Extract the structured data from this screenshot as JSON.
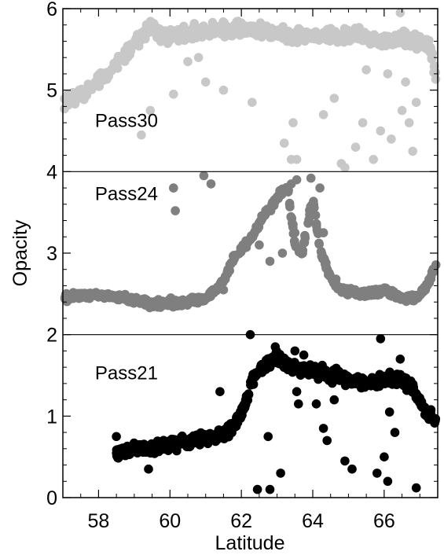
{
  "chart_data": {
    "type": "scatter",
    "title": "",
    "xlabel": "Latitude",
    "ylabel": "Opacity",
    "xlim": [
      57,
      67.5
    ],
    "ylim": [
      0,
      6
    ],
    "xticks": [
      58,
      60,
      62,
      64,
      66
    ],
    "yticks": [
      0,
      1,
      2,
      3,
      4,
      5,
      6
    ],
    "grid": false,
    "dividers_y": [
      2,
      4
    ],
    "series": [
      {
        "name": "Pass30",
        "color": "#c8c8c8",
        "label_pos": [
          57.9,
          4.55
        ],
        "anchors": [
          [
            57.0,
            4.85
          ],
          [
            57.5,
            4.95
          ],
          [
            58.0,
            5.1
          ],
          [
            58.5,
            5.3
          ],
          [
            59.0,
            5.55
          ],
          [
            59.4,
            5.75
          ],
          [
            59.7,
            5.7
          ],
          [
            60.0,
            5.65
          ],
          [
            60.5,
            5.7
          ],
          [
            61.0,
            5.72
          ],
          [
            62.0,
            5.75
          ],
          [
            63.0,
            5.7
          ],
          [
            64.0,
            5.65
          ],
          [
            65.0,
            5.7
          ],
          [
            66.0,
            5.6
          ],
          [
            66.5,
            5.65
          ],
          [
            67.0,
            5.6
          ],
          [
            67.3,
            5.5
          ],
          [
            67.5,
            5.0
          ]
        ],
        "spread": 0.08,
        "outliers": [
          [
            59.2,
            4.45
          ],
          [
            59.45,
            4.75
          ],
          [
            60.1,
            4.95
          ],
          [
            60.5,
            5.35
          ],
          [
            61.0,
            5.1
          ],
          [
            61.5,
            5.0
          ],
          [
            62.3,
            4.85
          ],
          [
            63.2,
            4.35
          ],
          [
            63.45,
            4.6
          ],
          [
            63.4,
            4.15
          ],
          [
            63.55,
            4.15
          ],
          [
            64.3,
            4.7
          ],
          [
            64.6,
            4.9
          ],
          [
            64.8,
            4.1
          ],
          [
            64.9,
            4.05
          ],
          [
            65.2,
            4.3
          ],
          [
            65.4,
            4.6
          ],
          [
            65.7,
            4.15
          ],
          [
            65.9,
            4.5
          ],
          [
            66.2,
            4.4
          ],
          [
            66.6,
            5.1
          ],
          [
            66.7,
            4.6
          ],
          [
            66.8,
            4.25
          ],
          [
            66.5,
            4.75
          ],
          [
            66.9,
            4.85
          ],
          [
            66.1,
            5.2
          ],
          [
            65.5,
            5.25
          ],
          [
            60.8,
            5.4
          ],
          [
            66.45,
            5.95
          ]
        ]
      },
      {
        "name": "Pass24",
        "color": "#7f7f7f",
        "label_pos": [
          57.9,
          3.65
        ],
        "anchors": [
          [
            57.0,
            2.45
          ],
          [
            58.0,
            2.5
          ],
          [
            59.0,
            2.42
          ],
          [
            59.5,
            2.38
          ],
          [
            60.5,
            2.4
          ],
          [
            61.0,
            2.45
          ],
          [
            61.5,
            2.65
          ],
          [
            61.8,
            2.95
          ],
          [
            62.0,
            3.05
          ],
          [
            62.3,
            3.2
          ],
          [
            62.6,
            3.45
          ],
          [
            62.9,
            3.6
          ],
          [
            63.1,
            3.75
          ],
          [
            63.3,
            3.8
          ],
          [
            63.5,
            3.1
          ],
          [
            63.7,
            3.0
          ],
          [
            63.9,
            3.45
          ],
          [
            64.0,
            3.7
          ],
          [
            64.2,
            3.05
          ],
          [
            64.5,
            2.7
          ],
          [
            64.8,
            2.55
          ],
          [
            65.5,
            2.5
          ],
          [
            66.0,
            2.55
          ],
          [
            66.5,
            2.45
          ],
          [
            66.9,
            2.45
          ],
          [
            67.2,
            2.6
          ],
          [
            67.5,
            2.9
          ]
        ],
        "spread": 0.04,
        "outliers": [
          [
            60.1,
            3.8
          ],
          [
            60.15,
            3.52
          ],
          [
            60.95,
            3.95
          ],
          [
            61.15,
            3.85
          ],
          [
            61.5,
            2.55
          ],
          [
            62.5,
            3.1
          ],
          [
            62.8,
            2.9
          ],
          [
            63.35,
            3.6
          ],
          [
            63.4,
            3.85
          ],
          [
            63.45,
            3.35
          ],
          [
            63.5,
            3.25
          ],
          [
            63.95,
            3.92
          ],
          [
            64.2,
            3.8
          ],
          [
            63.55,
            3.9
          ],
          [
            62.7,
            3.5
          ],
          [
            63.15,
            3.0
          ],
          [
            64.3,
            3.25
          ]
        ]
      },
      {
        "name": "Pass21",
        "color": "#000000",
        "label_pos": [
          57.9,
          1.45
        ],
        "anchors": [
          [
            58.5,
            0.55
          ],
          [
            59.0,
            0.6
          ],
          [
            59.5,
            0.6
          ],
          [
            60.0,
            0.65
          ],
          [
            60.5,
            0.7
          ],
          [
            61.0,
            0.72
          ],
          [
            61.5,
            0.78
          ],
          [
            61.9,
            0.95
          ],
          [
            62.1,
            1.15
          ],
          [
            62.3,
            1.45
          ],
          [
            62.6,
            1.6
          ],
          [
            63.0,
            1.7
          ],
          [
            63.5,
            1.6
          ],
          [
            64.0,
            1.55
          ],
          [
            64.5,
            1.5
          ],
          [
            65.0,
            1.45
          ],
          [
            65.5,
            1.4
          ],
          [
            66.0,
            1.45
          ],
          [
            66.5,
            1.45
          ],
          [
            66.8,
            1.35
          ],
          [
            67.1,
            1.1
          ],
          [
            67.5,
            0.9
          ]
        ],
        "spread": 0.07,
        "outliers": [
          [
            58.5,
            0.75
          ],
          [
            59.4,
            0.35
          ],
          [
            61.4,
            1.3
          ],
          [
            62.25,
            2.0
          ],
          [
            62.45,
            0.1
          ],
          [
            62.8,
            0.1
          ],
          [
            62.75,
            0.75
          ],
          [
            63.1,
            0.3
          ],
          [
            62.95,
            1.85
          ],
          [
            63.5,
            1.8
          ],
          [
            63.6,
            1.15
          ],
          [
            63.55,
            1.3
          ],
          [
            63.9,
            1.6
          ],
          [
            64.3,
            0.85
          ],
          [
            64.4,
            0.7
          ],
          [
            64.9,
            0.45
          ],
          [
            65.1,
            0.35
          ],
          [
            65.8,
            0.3
          ],
          [
            65.9,
            1.95
          ],
          [
            66.0,
            0.5
          ],
          [
            66.1,
            0.2
          ],
          [
            66.3,
            0.8
          ],
          [
            66.9,
            0.12
          ],
          [
            64.1,
            1.15
          ],
          [
            64.6,
            1.2
          ],
          [
            66.15,
            1.05
          ],
          [
            66.45,
            1.7
          ],
          [
            63.75,
            1.75
          ]
        ]
      }
    ]
  }
}
